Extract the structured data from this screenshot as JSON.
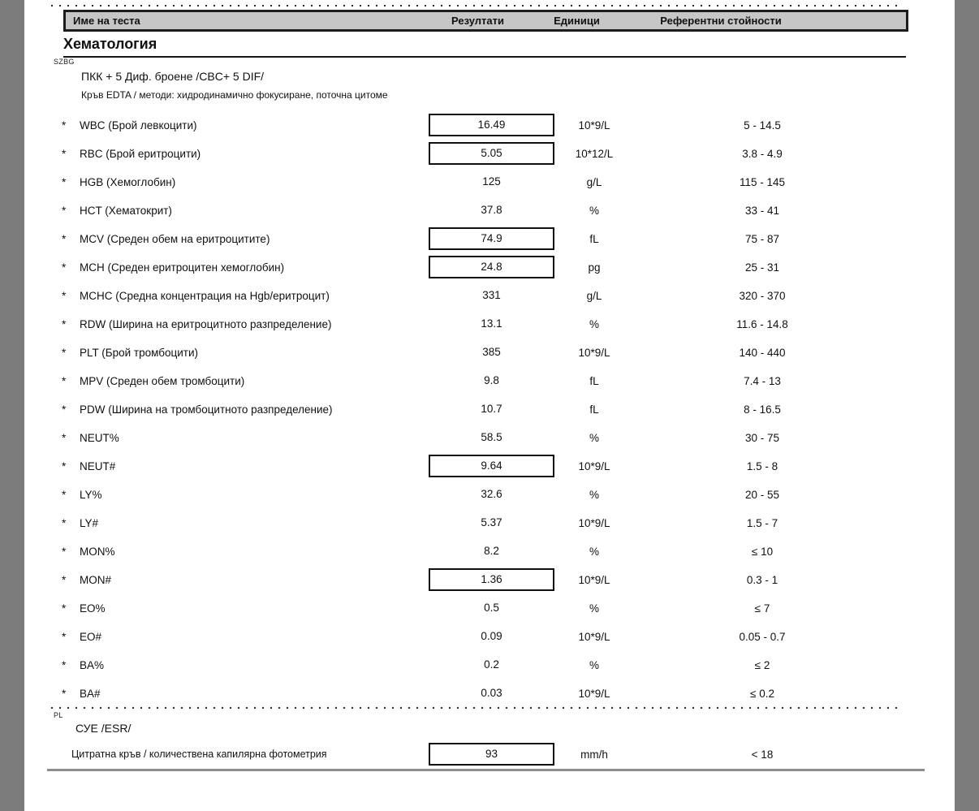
{
  "colors": {
    "frame": "#7b7b7b",
    "headerbg": "#c6c6c6"
  },
  "table_header": {
    "name": "Име на теста",
    "result": "Резултати",
    "unit": "Единици",
    "reference": "Референтни стойности"
  },
  "section": {
    "title": "Хематология"
  },
  "panels": [
    {
      "code": "SZBG",
      "title": "ПКК + 5 Диф. броене /CBC+ 5 DIF/",
      "method": "Кръв EDTA / методи: хидродинамично фокусиране, поточна цитоме",
      "rows": [
        {
          "flag": "*",
          "name": "WBC (Брой левкоцити)",
          "result": "16.49",
          "boxed": true,
          "unit": "10*9/L",
          "reference": "5 - 14.5"
        },
        {
          "flag": "*",
          "name": "RBC (Брой еритроцити)",
          "result": "5.05",
          "boxed": true,
          "unit": "10*12/L",
          "reference": "3.8 - 4.9"
        },
        {
          "flag": "*",
          "name": "HGB (Хемоглобин)",
          "result": "125",
          "boxed": false,
          "unit": "g/L",
          "reference": "115 - 145"
        },
        {
          "flag": "*",
          "name": "HCT (Хематокрит)",
          "result": "37.8",
          "boxed": false,
          "unit": "%",
          "reference": "33 - 41"
        },
        {
          "flag": "*",
          "name": "MCV (Среден обем на еритроцитите)",
          "result": "74.9",
          "boxed": true,
          "unit": "fL",
          "reference": "75 - 87"
        },
        {
          "flag": "*",
          "name": "MCH (Среден еритроцитен хемоглобин)",
          "result": "24.8",
          "boxed": true,
          "unit": "pg",
          "reference": "25 - 31"
        },
        {
          "flag": "*",
          "name": "MCHC (Средна концентрация на Hgb/еритроцит)",
          "result": "331",
          "boxed": false,
          "unit": "g/L",
          "reference": "320 - 370"
        },
        {
          "flag": "*",
          "name": "RDW (Ширина на еритроцитното разпределение)",
          "result": "13.1",
          "boxed": false,
          "unit": "%",
          "reference": "11.6 - 14.8"
        },
        {
          "flag": "*",
          "name": "PLT (Брой тромбоцити)",
          "result": "385",
          "boxed": false,
          "unit": "10*9/L",
          "reference": "140 - 440"
        },
        {
          "flag": "*",
          "name": "MPV (Среден обем тромбоцити)",
          "result": "9.8",
          "boxed": false,
          "unit": "fL",
          "reference": "7.4 - 13"
        },
        {
          "flag": "*",
          "name": "PDW (Ширина на тромбоцитното разпределение)",
          "result": "10.7",
          "boxed": false,
          "unit": "fL",
          "reference": "8 - 16.5"
        },
        {
          "flag": "*",
          "name": "NEUT%",
          "result": "58.5",
          "boxed": false,
          "unit": "%",
          "reference": "30 - 75"
        },
        {
          "flag": "*",
          "name": "NEUT#",
          "result": "9.64",
          "boxed": true,
          "unit": "10*9/L",
          "reference": "1.5 - 8"
        },
        {
          "flag": "*",
          "name": "LY%",
          "result": "32.6",
          "boxed": false,
          "unit": "%",
          "reference": "20 - 55"
        },
        {
          "flag": "*",
          "name": "LY#",
          "result": "5.37",
          "boxed": false,
          "unit": "10*9/L",
          "reference": "1.5 - 7"
        },
        {
          "flag": "*",
          "name": "MON%",
          "result": "8.2",
          "boxed": false,
          "unit": "%",
          "reference": "≤ 10"
        },
        {
          "flag": "*",
          "name": "MON#",
          "result": "1.36",
          "boxed": true,
          "unit": "10*9/L",
          "reference": "0.3 - 1"
        },
        {
          "flag": "*",
          "name": "EO%",
          "result": "0.5",
          "boxed": false,
          "unit": "%",
          "reference": "≤ 7"
        },
        {
          "flag": "*",
          "name": "EO#",
          "result": "0.09",
          "boxed": false,
          "unit": "10*9/L",
          "reference": "0.05 - 0.7"
        },
        {
          "flag": "*",
          "name": "BA%",
          "result": "0.2",
          "boxed": false,
          "unit": "%",
          "reference": "≤ 2"
        },
        {
          "flag": "*",
          "name": "BA#",
          "result": "0.03",
          "boxed": false,
          "unit": "10*9/L",
          "reference": "≤ 0.2"
        }
      ]
    },
    {
      "code": "PL",
      "title": "СУЕ /ESR/",
      "rows": [
        {
          "flag": "",
          "name": "Цитратна кръв / количествена капилярна фотометрия",
          "result": "93",
          "boxed": true,
          "unit": "mm/h",
          "reference": "< 18"
        }
      ]
    }
  ]
}
